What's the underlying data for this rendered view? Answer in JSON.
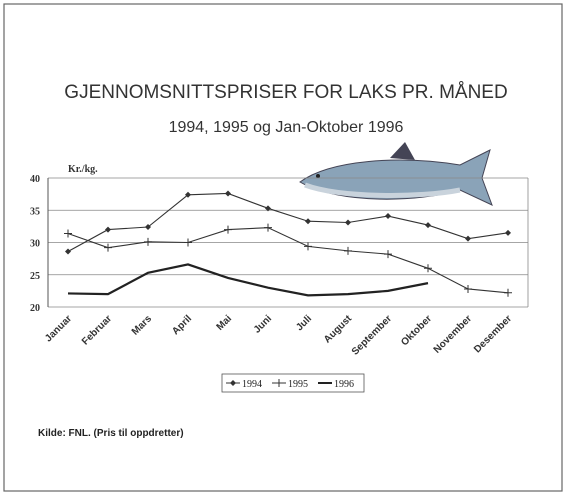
{
  "chart_data": {
    "type": "line",
    "title": "GJENNOMSNITTSPRISER FOR LAKS PR. MÅNED",
    "subtitle": "1994, 1995 og Jan-Oktober 1996",
    "y_label": "Kr./kg.",
    "source": "Kilde: FNL. (Pris til oppdretter)",
    "categories": [
      "Januar",
      "Februar",
      "Mars",
      "April",
      "Mai",
      "Juni",
      "Juli",
      "August",
      "September",
      "Oktober",
      "November",
      "Desember"
    ],
    "series": [
      {
        "name": "1994",
        "color": "#333333",
        "marker": "diamond",
        "values": [
          28.6,
          32.0,
          32.4,
          37.4,
          37.6,
          35.3,
          33.3,
          33.1,
          34.1,
          32.7,
          30.6,
          31.5
        ]
      },
      {
        "name": "1995",
        "color": "#333333",
        "marker": "plus",
        "values": [
          31.4,
          29.2,
          30.1,
          30.0,
          32.0,
          32.3,
          29.4,
          28.7,
          28.2,
          26.0,
          22.8,
          22.2
        ]
      },
      {
        "name": "1996",
        "color": "#222222",
        "marker": "none",
        "values": [
          22.1,
          22.0,
          25.3,
          26.6,
          24.5,
          23.0,
          21.8,
          22.0,
          22.5,
          23.7,
          null,
          null
        ]
      }
    ],
    "ylim": [
      20,
      40
    ],
    "yticks": [
      20,
      25,
      30,
      35,
      40
    ],
    "grid": true,
    "legend": "bottom"
  }
}
